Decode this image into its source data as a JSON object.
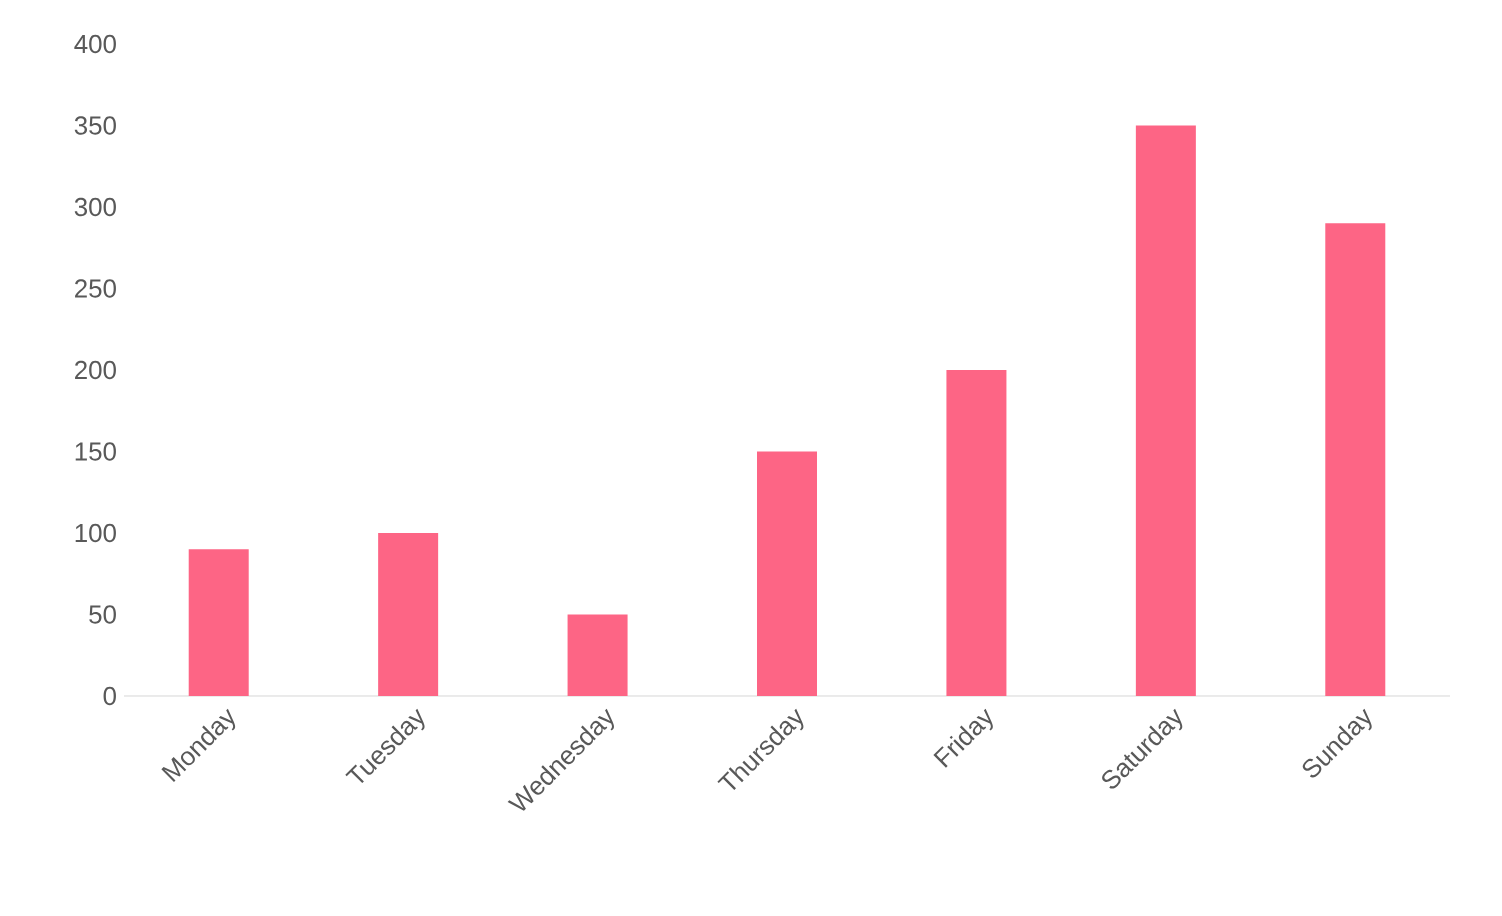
{
  "chart_data": {
    "type": "bar",
    "categories": [
      "Monday",
      "Tuesday",
      "Wednesday",
      "Thursday",
      "Friday",
      "Saturday",
      "Sunday"
    ],
    "values": [
      90,
      100,
      50,
      150,
      200,
      350,
      290
    ],
    "color": "#fd6585",
    "ylim": [
      0,
      400
    ],
    "yticks": [
      0,
      50,
      100,
      150,
      200,
      250,
      300,
      350,
      400
    ],
    "grid": false
  }
}
